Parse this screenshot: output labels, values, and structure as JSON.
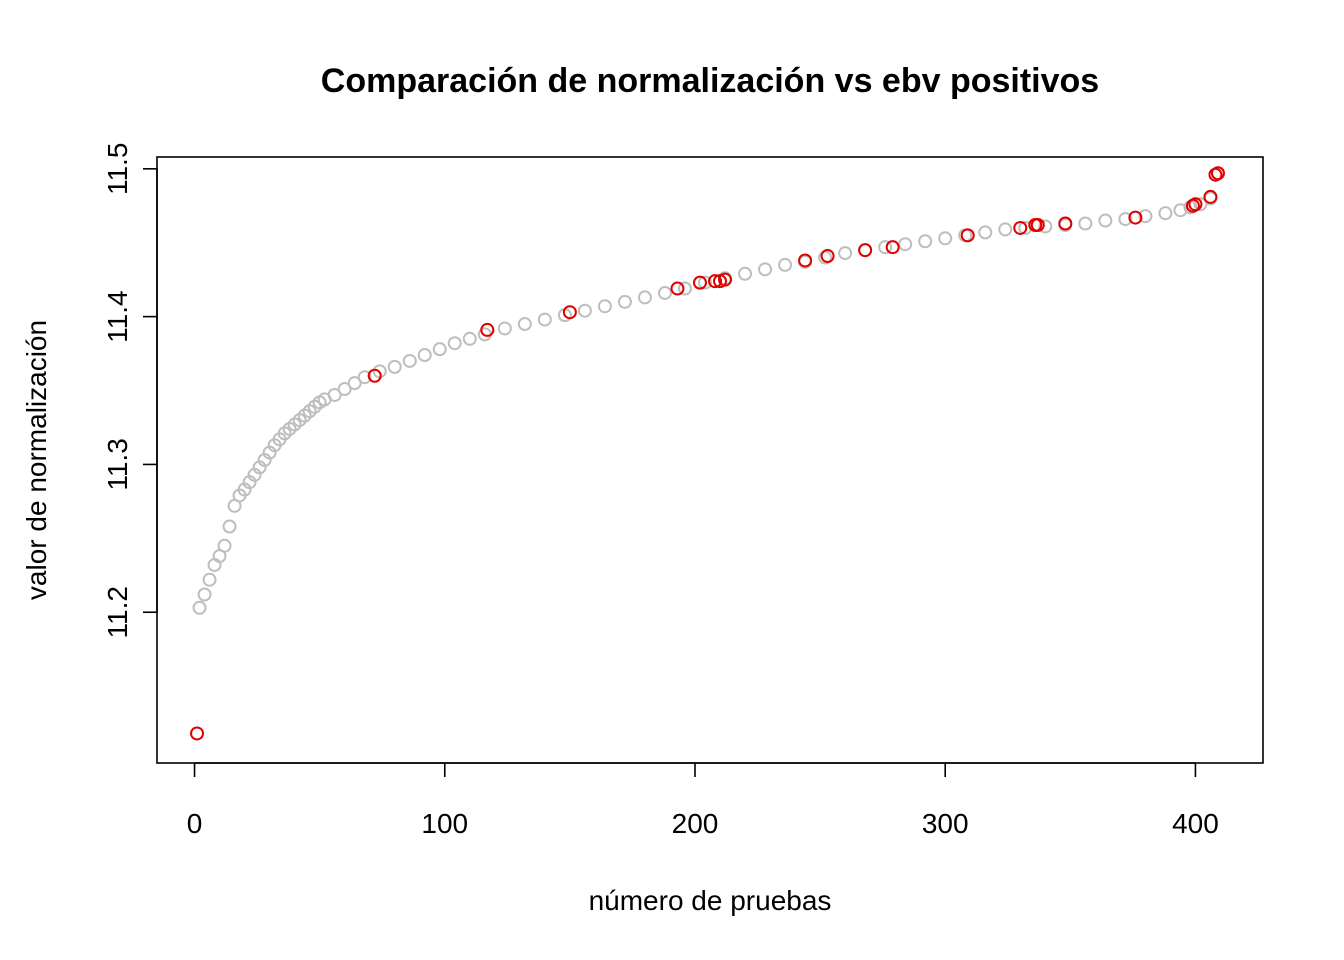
{
  "chart_data": {
    "type": "scatter",
    "title": "Comparación de normalización vs ebv positivos",
    "xlabel": "número de pruebas",
    "ylabel": "valor de normalización",
    "xlim": [
      -15,
      427
    ],
    "ylim": [
      11.098,
      11.508
    ],
    "x_ticks": [
      0,
      100,
      200,
      300,
      400
    ],
    "y_ticks": [
      11.2,
      11.3,
      11.4,
      11.5
    ],
    "grid": false,
    "legend": "none",
    "series": [
      {
        "marker": "open-circle",
        "color": "#BEBEBE",
        "x": [
          2,
          4,
          6,
          8,
          10,
          12,
          14,
          16,
          18,
          20,
          22,
          24,
          26,
          28,
          30,
          32,
          34,
          36,
          38,
          40,
          42,
          44,
          46,
          48,
          50,
          52,
          56,
          60,
          64,
          68,
          74,
          80,
          86,
          92,
          98,
          104,
          110,
          116,
          124,
          132,
          140,
          148,
          156,
          164,
          172,
          180,
          188,
          196,
          204,
          212,
          220,
          228,
          236,
          244,
          252,
          260,
          268,
          276,
          284,
          292,
          300,
          308,
          316,
          324,
          332,
          340,
          348,
          356,
          364,
          372,
          380,
          388,
          394,
          398,
          402,
          406
        ],
        "y": [
          11.203,
          11.212,
          11.222,
          11.232,
          11.238,
          11.245,
          11.258,
          11.272,
          11.279,
          11.283,
          11.288,
          11.293,
          11.298,
          11.303,
          11.308,
          11.313,
          11.317,
          11.321,
          11.324,
          11.327,
          11.33,
          11.333,
          11.336,
          11.339,
          11.342,
          11.344,
          11.347,
          11.351,
          11.355,
          11.359,
          11.363,
          11.366,
          11.37,
          11.374,
          11.378,
          11.382,
          11.385,
          11.388,
          11.392,
          11.395,
          11.398,
          11.401,
          11.404,
          11.407,
          11.41,
          11.413,
          11.416,
          11.419,
          11.423,
          11.426,
          11.429,
          11.432,
          11.435,
          11.437,
          11.44,
          11.443,
          11.445,
          11.447,
          11.449,
          11.451,
          11.453,
          11.455,
          11.457,
          11.459,
          11.46,
          11.461,
          11.462,
          11.463,
          11.465,
          11.466,
          11.468,
          11.47,
          11.472,
          11.474,
          11.476,
          11.48
        ]
      },
      {
        "marker": "open-circle",
        "color": "#E00000",
        "x": [
          1,
          72,
          117,
          150,
          193,
          202,
          208,
          210,
          212,
          244,
          253,
          268,
          279,
          309,
          330,
          336,
          337,
          348,
          376,
          399,
          400,
          406,
          408,
          409
        ],
        "y": [
          11.118,
          11.36,
          11.391,
          11.403,
          11.419,
          11.423,
          11.424,
          11.424,
          11.425,
          11.438,
          11.441,
          11.445,
          11.447,
          11.455,
          11.46,
          11.462,
          11.462,
          11.463,
          11.467,
          11.475,
          11.476,
          11.481,
          11.496,
          11.497
        ]
      }
    ]
  }
}
